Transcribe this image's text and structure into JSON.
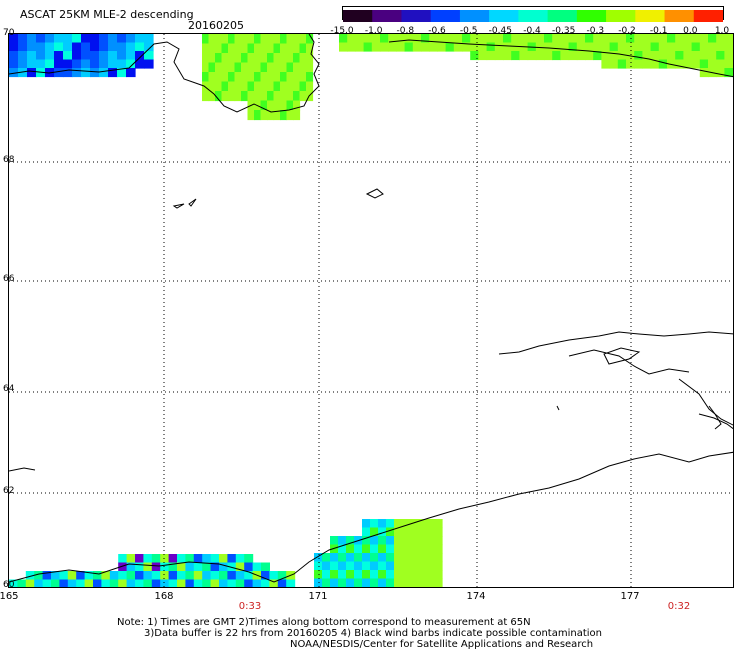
{
  "header": {
    "title": "ASCAT 25KM MLE-2 descending",
    "date": "20160205"
  },
  "colorbar": {
    "labels": [
      "-15.0",
      "-1.0",
      "-0.8",
      "-0.6",
      "-0.5",
      "-0.45",
      "-0.4",
      "-0.35",
      "-0.3",
      "-0.2",
      "-0.1",
      "0.0",
      "1.0"
    ],
    "colors": [
      "#200020",
      "#4a0080",
      "#2010c0",
      "#0040ff",
      "#0090ff",
      "#00d8ff",
      "#00ffd0",
      "#00ff80",
      "#30ff00",
      "#a0ff00",
      "#f0f000",
      "#ff9000",
      "#ff2000"
    ]
  },
  "map": {
    "lat_labels": [
      "70",
      "68",
      "66",
      "64",
      "62",
      "60"
    ],
    "lon_labels": [
      "165",
      "168",
      "171",
      "174",
      "177"
    ],
    "time_labels": [
      "0:33",
      "0:32"
    ],
    "gridline_color": "#000000"
  },
  "notes": {
    "line1": "Note: 1) Times are GMT 2)Times along bottom correspond to measurement at 65N",
    "line2": "3)Data buffer is 22 hrs from 20160205 4) Black wind barbs indicate possible contamination",
    "line3": "NOAA/NESDIS/Center for Satellite Applications and Research"
  }
}
